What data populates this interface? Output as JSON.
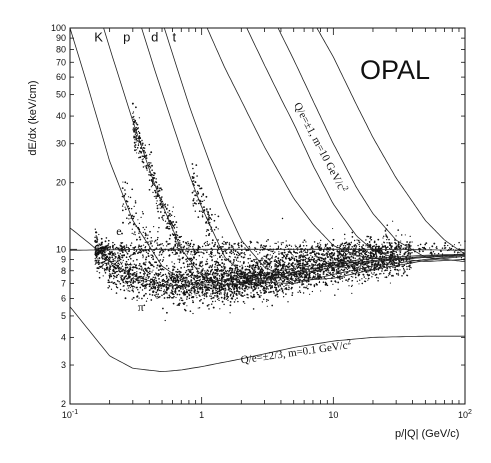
{
  "chart_data": {
    "type": "scatter",
    "title": "",
    "brand": "OPAL",
    "ylabel": "dE/dx (keV/cm)",
    "xlabel": "p/|Q| (GeV/c)",
    "x_scale": "log",
    "y_scale": "log",
    "xlim": [
      0.1,
      100
    ],
    "ylim": [
      2,
      100
    ],
    "grid": false,
    "x_ticks": [
      {
        "value": 0.1,
        "base": "10",
        "exp": "-1"
      },
      {
        "value": 1,
        "label": "1"
      },
      {
        "value": 10,
        "label": "10"
      },
      {
        "value": 100,
        "base": "10",
        "exp": "2"
      }
    ],
    "y_ticks": [
      {
        "value": 2,
        "label": "2"
      },
      {
        "value": 3,
        "label": "3"
      },
      {
        "value": 4,
        "label": "4"
      },
      {
        "value": 5,
        "label": "5"
      },
      {
        "value": 6,
        "label": "6"
      },
      {
        "value": 7,
        "label": "7"
      },
      {
        "value": 8,
        "label": "8"
      },
      {
        "value": 9,
        "label": "9"
      },
      {
        "value": 10,
        "label": "10"
      },
      {
        "value": 20,
        "label": "20"
      },
      {
        "value": 30,
        "label": "30"
      },
      {
        "value": 40,
        "label": "40"
      },
      {
        "value": 50,
        "label": "50"
      },
      {
        "value": 60,
        "label": "60"
      },
      {
        "value": 70,
        "label": "70"
      },
      {
        "value": 80,
        "label": "80"
      },
      {
        "value": 90,
        "label": "90"
      },
      {
        "value": 100,
        "label": "100"
      }
    ],
    "particle_labels": [
      {
        "text": "K",
        "x": 0.165,
        "y": 87
      },
      {
        "text": "p",
        "x": 0.27,
        "y": 87
      },
      {
        "text": "d",
        "x": 0.44,
        "y": 87
      },
      {
        "text": "t",
        "x": 0.62,
        "y": 87
      },
      {
        "text": "e",
        "x": 0.235,
        "y": 11.6
      },
      {
        "text": "π",
        "x": 0.345,
        "y": 5.25
      }
    ],
    "annotations": {
      "heavy": {
        "text": "Q/e=±1, m=10 GeV/c",
        "sup": "2",
        "x": 5.0,
        "y": 45
      },
      "light": {
        "text": "Q/e=±2/3, m=0.1 GeV/c",
        "sup": "2",
        "x": 2.0,
        "y": 3.05
      }
    },
    "series": [
      {
        "name": "e",
        "x": [
          0.1,
          0.2,
          0.5,
          1,
          2,
          5,
          10,
          20,
          50,
          100
        ],
        "y": [
          9.9,
          9.95,
          10.0,
          10.0,
          10.0,
          10.0,
          10.0,
          10.0,
          9.95,
          9.9
        ]
      },
      {
        "name": "π",
        "x": [
          0.1,
          0.15,
          0.2,
          0.3,
          0.5,
          0.7,
          1,
          2,
          5,
          10,
          20,
          50,
          100
        ],
        "y": [
          12.5,
          10.3,
          8.8,
          7.6,
          6.9,
          6.85,
          7.0,
          7.5,
          8.2,
          8.7,
          9.1,
          9.4,
          9.5
        ]
      },
      {
        "name": "K",
        "x": [
          0.1,
          0.13,
          0.17,
          0.2,
          0.3,
          0.5,
          0.7,
          1,
          1.5,
          2,
          5,
          10,
          20,
          50,
          100
        ],
        "y": [
          100,
          60,
          35,
          25,
          13.5,
          8.4,
          7.3,
          6.9,
          6.9,
          7.1,
          7.9,
          8.5,
          8.9,
          9.3,
          9.5
        ]
      },
      {
        "name": "p",
        "x": [
          0.18,
          0.22,
          0.3,
          0.4,
          0.5,
          0.7,
          1,
          1.5,
          2,
          3,
          5,
          10,
          20,
          50,
          100
        ],
        "y": [
          100,
          68,
          38,
          23,
          16,
          10,
          7.6,
          6.9,
          6.95,
          7.2,
          7.7,
          8.3,
          8.8,
          9.2,
          9.5
        ]
      },
      {
        "name": "d",
        "x": [
          0.35,
          0.45,
          0.6,
          0.8,
          1,
          1.5,
          2,
          3,
          5,
          10,
          20,
          50,
          100
        ],
        "y": [
          100,
          62,
          37,
          22,
          15.5,
          9.2,
          7.9,
          7.1,
          7.0,
          7.7,
          8.4,
          9.0,
          9.4
        ]
      },
      {
        "name": "t",
        "x": [
          0.52,
          0.65,
          0.8,
          1,
          1.5,
          2,
          3,
          5,
          10,
          20,
          50,
          100
        ],
        "y": [
          100,
          66,
          45,
          31,
          16,
          11,
          8.3,
          7.2,
          7.4,
          8.1,
          8.9,
          9.3
        ]
      },
      {
        "name": "",
        "x": [
          1.1,
          1.5,
          2,
          3,
          5,
          7,
          10,
          15,
          20,
          30,
          50,
          100
        ],
        "y": [
          100,
          66,
          47,
          29,
          17,
          13,
          10.4,
          9.4,
          9.1,
          9.0,
          9.2,
          9.4
        ]
      },
      {
        "name": "",
        "x": [
          2.2,
          3,
          4,
          5,
          7,
          10,
          15,
          20,
          30,
          50,
          100
        ],
        "y": [
          100,
          68,
          48,
          37,
          24,
          16,
          11.5,
          9.9,
          9.1,
          8.8,
          9.0
        ]
      },
      {
        "name": "",
        "x": [
          3.8,
          5,
          7,
          10,
          15,
          20,
          30,
          50,
          100
        ],
        "y": [
          100,
          72,
          47,
          30,
          19,
          14.5,
          11,
          9.2,
          8.8
        ]
      },
      {
        "name": "",
        "x": [
          7.5,
          10,
          15,
          20,
          30,
          50,
          70,
          100
        ],
        "y": [
          100,
          74,
          45,
          32,
          21,
          13.5,
          11,
          9.5
        ]
      },
      {
        "name": "Q/e=±2/3, m=0.1 GeV/c²",
        "x": [
          0.1,
          0.2,
          0.3,
          0.5,
          0.7,
          1,
          2,
          5,
          10,
          20,
          50,
          100
        ],
        "y": [
          5.5,
          3.3,
          2.9,
          2.8,
          2.85,
          2.95,
          3.2,
          3.6,
          3.85,
          4.0,
          4.05,
          4.05
        ]
      }
    ]
  }
}
